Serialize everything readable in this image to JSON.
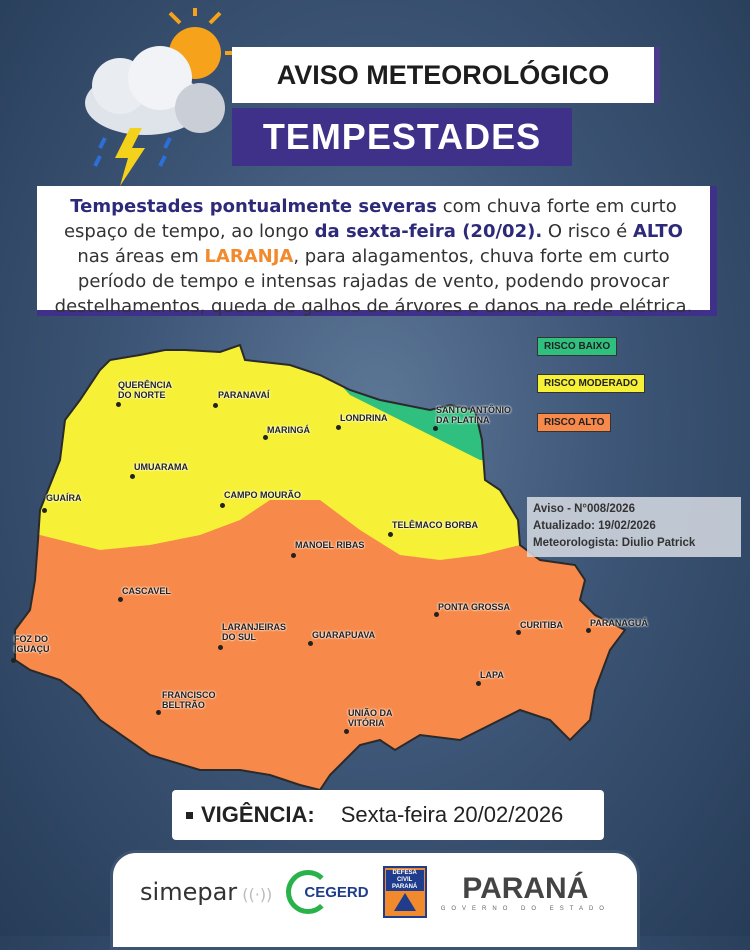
{
  "header": {
    "title": "AVISO METEOROLÓGICO",
    "subtitle": "TEMPESTADES"
  },
  "description": {
    "p1_bold": "Tempestades pontualmente severas",
    "p1": " com chuva forte em curto espaço de tempo, ao longo ",
    "p2_bold": "da sexta-feira (20/02).",
    "p3": " O risco é ",
    "p3_bold": "ALTO",
    "p4": " nas áreas em ",
    "p4_bold": "LARANJA",
    "p5": ", para alagamentos, chuva forte em curto período de tempo e intensas rajadas de vento, podendo provocar destelhamentos, queda de galhos de árvores e danos na rede elétrica."
  },
  "legend": [
    {
      "label": "RISCO BAIXO",
      "color": "#2fbf7f"
    },
    {
      "label": "RISCO MODERADO",
      "color": "#f6f136"
    },
    {
      "label": "RISCO ALTO",
      "color": "#f7894a"
    }
  ],
  "info": {
    "aviso": "Aviso - N°008/2026",
    "atualizado": "Atualizado: 19/02/2026",
    "meteorologista": "Meteorologista: Diulio Patrick"
  },
  "cities": [
    "QUERÊNCIA\nDO NORTE",
    "PARANAVAÍ",
    "LONDRINA",
    "SANTO ANTÔNIO\nDA PLATINA",
    "MARINGÁ",
    "UMUARAMA",
    "GUAÍRA",
    "CAMPO MOURÃO",
    "TELÊMACO BORBA",
    "MANOEL RIBAS",
    "CASCAVEL",
    "PONTA GROSSA",
    "FOZ DO\nIGUAÇU",
    "LARANJEIRAS\nDO SUL",
    "GUARAPUAVA",
    "CURITIBA",
    "PARANAGUÁ",
    "LAPA",
    "FRANCISCO\nBELTRÃO",
    "UNIÃO DA\nVITÓRIA"
  ],
  "vigencia": {
    "label": "VIGÊNCIA:",
    "value": "Sexta-feira 20/02/2026"
  },
  "footer": {
    "simepar": "simepar",
    "cegerd": "CEGERD",
    "defesa_civil": "DEFESA CIVIL PARANÁ",
    "parana": "PARANÁ",
    "parana_sub": "GOVERNO DO ESTADO"
  }
}
